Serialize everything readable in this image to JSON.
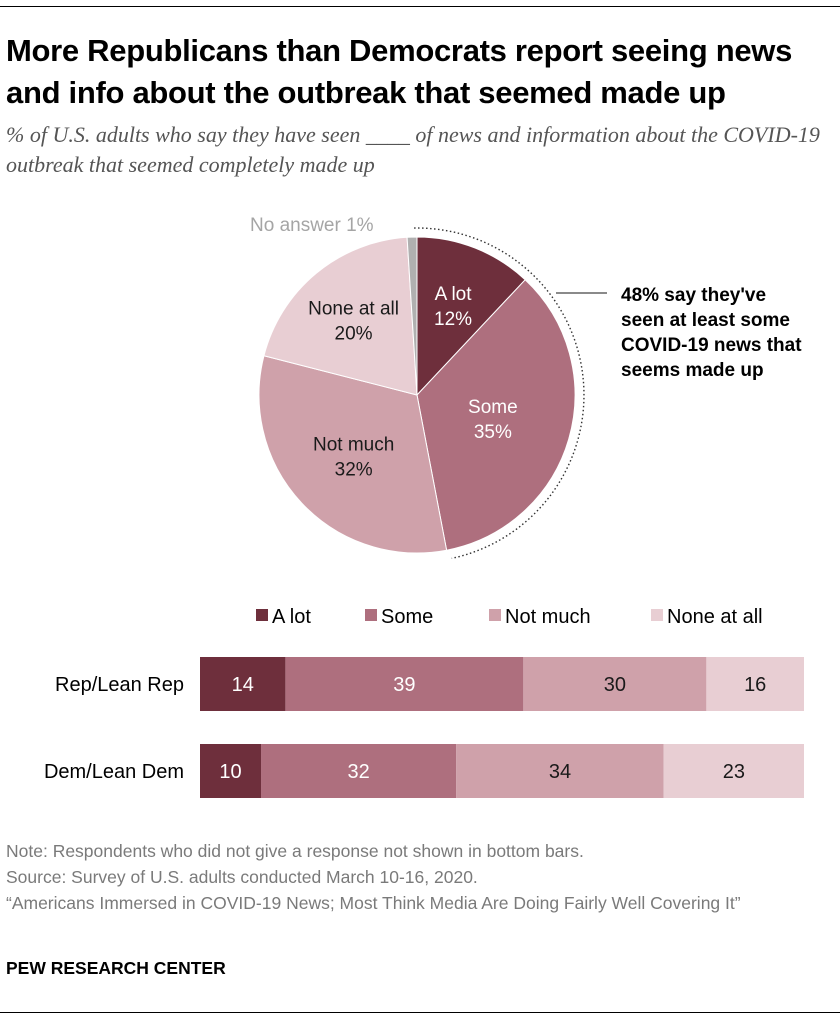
{
  "title": "More Republicans than Democrats report seeing news and info about the outbreak that seemed made up",
  "subtitle": "% of U.S. adults who say they have seen ____ of news and information about the COVID-19 outbreak that seemed completely made up",
  "colors": {
    "a_lot": "#6e2f3c",
    "some": "#ae6f7e",
    "not_much": "#cfa1aa",
    "none_at_all": "#e8ced3",
    "no_answer": "#b0b0b0",
    "text_light": "#ffffff",
    "text_dark": "#1a1a1a",
    "no_answer_label": "#a5a5a5"
  },
  "chart_data": [
    {
      "type": "pie",
      "slices": [
        {
          "key": "a_lot",
          "name": "A lot",
          "value": 12,
          "label": "12%"
        },
        {
          "key": "some",
          "name": "Some",
          "value": 35,
          "label": "35%"
        },
        {
          "key": "not_much",
          "name": "Not much",
          "value": 32,
          "label": "32%"
        },
        {
          "key": "none_at_all",
          "name": "None at all",
          "value": 20,
          "label": "20%"
        },
        {
          "key": "no_answer",
          "name": "No answer",
          "value": 1,
          "label": "1%"
        }
      ],
      "no_answer_label": "No answer 1%",
      "annotation": [
        "48% say they've",
        "seen at least some",
        "COVID-19 news that",
        "seems made up"
      ]
    },
    {
      "type": "bar",
      "orientation": "horizontal",
      "stacked": true,
      "categories": [
        "Rep/Lean Rep",
        "Dem/Lean Dem"
      ],
      "series": [
        {
          "key": "a_lot",
          "name": "A lot",
          "values": [
            14,
            10
          ]
        },
        {
          "key": "some",
          "name": "Some",
          "values": [
            39,
            32
          ]
        },
        {
          "key": "not_much",
          "name": "Not much",
          "values": [
            30,
            34
          ]
        },
        {
          "key": "none_at_all",
          "name": "None at all",
          "values": [
            16,
            23
          ]
        }
      ],
      "legend": [
        "A lot",
        "Some",
        "Not much",
        "None at all"
      ],
      "legend_position": "top"
    }
  ],
  "footer": {
    "note": "Note: Respondents who did not give a response not shown in bottom bars.",
    "source": "Source: Survey of U.S. adults conducted March 10-16, 2020.",
    "citation": "“Americans Immersed in COVID-19 News; Most Think Media Are Doing Fairly Well Covering It”",
    "brand": "PEW RESEARCH CENTER"
  }
}
